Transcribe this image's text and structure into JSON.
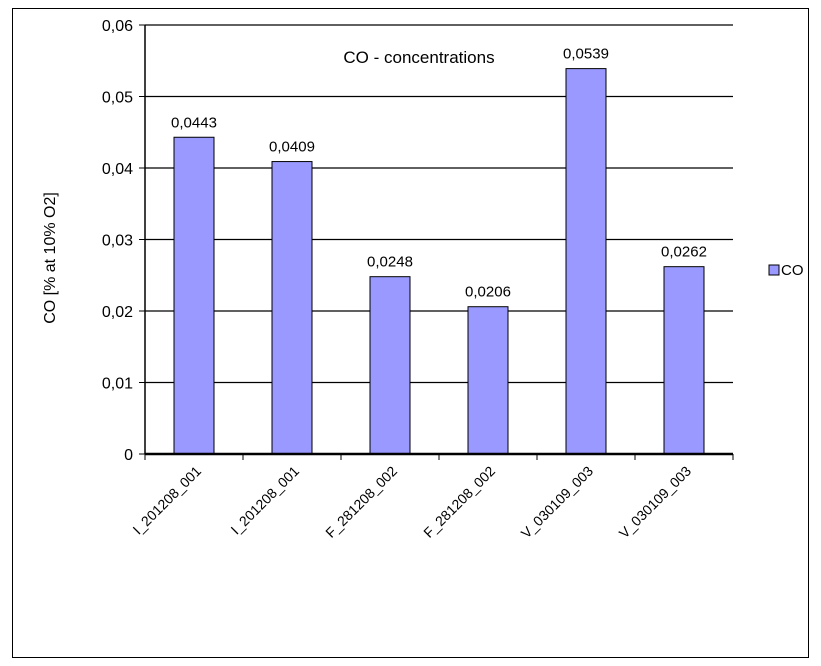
{
  "chart_data": {
    "type": "bar",
    "title": "CO - concentrations",
    "xlabel": "",
    "ylabel": "CO [% at 10% O2]",
    "categories": [
      "I_201208_001",
      "I_201208_001",
      "F_281208_002",
      "F_281208_002",
      "V_030109_003",
      "V_030109_003"
    ],
    "series": [
      {
        "name": "CO",
        "values": [
          0.0443,
          0.0409,
          0.0248,
          0.0206,
          0.0539,
          0.0262
        ],
        "labels": [
          "0,0443",
          "0,0409",
          "0,0248",
          "0,0206",
          "0,0539",
          "0,0262"
        ],
        "color": "#9999ff"
      }
    ],
    "ylim": [
      0,
      0.06
    ],
    "yticks": [
      0,
      0.01,
      0.02,
      0.03,
      0.04,
      0.05,
      0.06
    ],
    "ytick_labels": [
      "0",
      "0,01",
      "0,02",
      "0,03",
      "0,04",
      "0,05",
      "0,06"
    ],
    "grid": true,
    "legend_position": "right"
  }
}
